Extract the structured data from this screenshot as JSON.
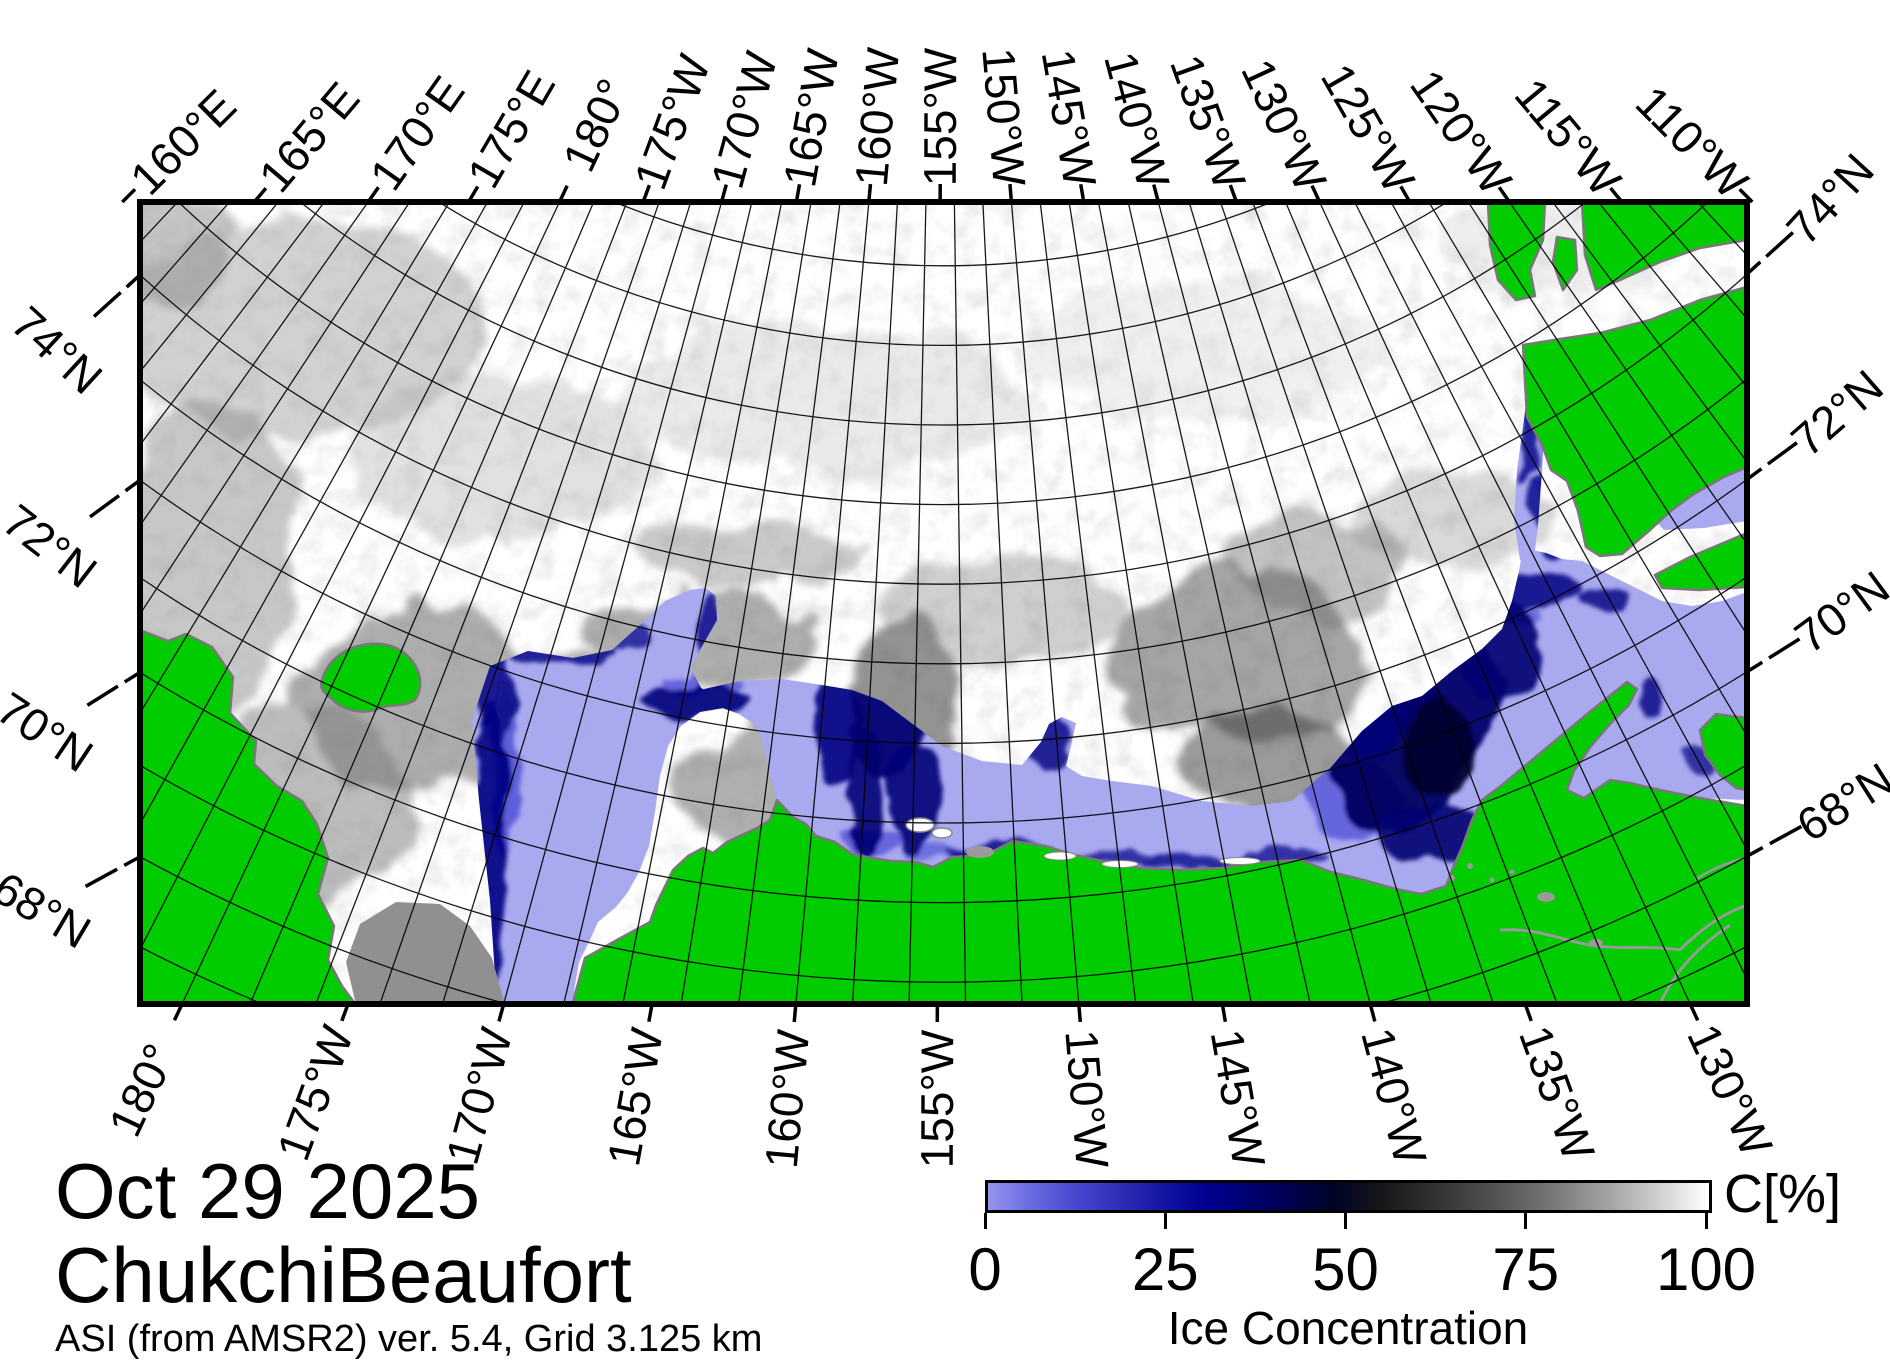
{
  "figure": {
    "date": "Oct 29 2025",
    "region": "ChukchiBeaufort",
    "source": "ASI (from AMSR2) ver. 5.4,  Grid 3.125 km"
  },
  "map": {
    "top_labels": [
      {
        "text": "160°E",
        "lon": -200
      },
      {
        "text": "165°E",
        "lon": -195
      },
      {
        "text": "170°E",
        "lon": -190
      },
      {
        "text": "175°E",
        "lon": -185
      },
      {
        "text": "180°",
        "lon": -180
      },
      {
        "text": "175°W",
        "lon": -175
      },
      {
        "text": "170°W",
        "lon": -170
      },
      {
        "text": "165°W",
        "lon": -165
      },
      {
        "text": "160°W",
        "lon": -160
      },
      {
        "text": "155°W",
        "lon": -155
      },
      {
        "text": "150°W",
        "lon": -150
      },
      {
        "text": "145°W",
        "lon": -145
      },
      {
        "text": "140°W",
        "lon": -140
      },
      {
        "text": "135°W",
        "lon": -135
      },
      {
        "text": "130°W",
        "lon": -130
      },
      {
        "text": "125°W",
        "lon": -125
      },
      {
        "text": "120°W",
        "lon": -120
      },
      {
        "text": "115°W",
        "lon": -115
      },
      {
        "text": "110°W",
        "lon": -110
      }
    ],
    "bottom_labels": [
      {
        "text": "180°",
        "lon": -180
      },
      {
        "text": "175°W",
        "lon": -175
      },
      {
        "text": "170°W",
        "lon": -170
      },
      {
        "text": "165°W",
        "lon": -165
      },
      {
        "text": "160°W",
        "lon": -160
      },
      {
        "text": "155°W",
        "lon": -155
      },
      {
        "text": "150°W",
        "lon": -150
      },
      {
        "text": "145°W",
        "lon": -145
      },
      {
        "text": "140°W",
        "lon": -140
      },
      {
        "text": "135°W",
        "lon": -135
      },
      {
        "text": "130°W",
        "lon": -130
      }
    ],
    "left_labels": [
      {
        "text": "74°N",
        "lat": 74
      },
      {
        "text": "72°N",
        "lat": 72
      },
      {
        "text": "70°N",
        "lat": 70
      },
      {
        "text": "68°N",
        "lat": 68
      }
    ],
    "right_labels": [
      {
        "text": "74°N",
        "lat": 74
      },
      {
        "text": "72°N",
        "lat": 72
      },
      {
        "text": "70°N",
        "lat": 70
      },
      {
        "text": "68°N",
        "lat": 68
      }
    ]
  },
  "colorbar": {
    "title": "Ice Concentration",
    "unit": "C[%]",
    "ticks": [
      "0",
      "25",
      "50",
      "75",
      "100"
    ],
    "range": [
      0,
      100
    ]
  },
  "legend_colors": {
    "land": "#00cc00",
    "open_water": "#a9a9f0",
    "low_ice_edge": "#000080",
    "high_ice": "#ffffff",
    "no_data_mask": "#909090"
  }
}
